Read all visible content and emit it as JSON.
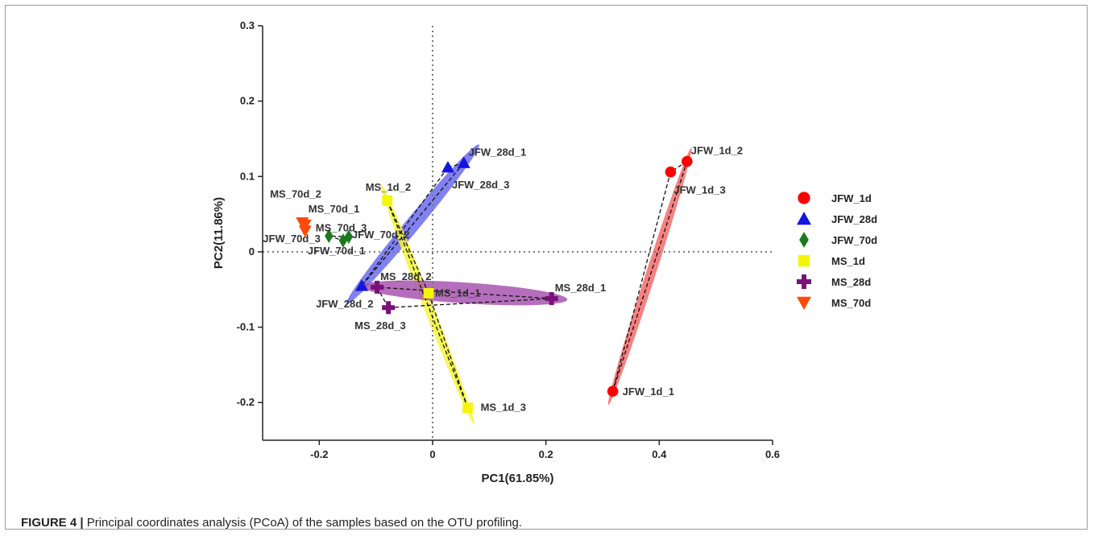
{
  "figure_caption": {
    "label": "FIGURE 4 |",
    "text": " Principal coordinates analysis (PCoA) of the samples based on the OTU profiling."
  },
  "chart_data": {
    "type": "scatter",
    "xlabel": "PC1(61.85%)",
    "ylabel": "PC2(11.86%)",
    "xlim": [
      -0.3,
      0.6
    ],
    "ylim": [
      -0.25,
      0.3
    ],
    "xticks": [
      "-0.2",
      "0",
      "0.2",
      "0.4",
      "0.6"
    ],
    "xtick_values": [
      -0.2,
      0,
      0.2,
      0.4,
      0.6
    ],
    "yticks": [
      "-0.2",
      "-0.1",
      "0",
      "0.1",
      "0.2",
      "0.3"
    ],
    "ytick_values": [
      -0.2,
      -0.1,
      0,
      0.1,
      0.2,
      0.3
    ],
    "grid": false,
    "reference_lines": {
      "x0": true,
      "y0": true,
      "style": "dotted"
    },
    "legend_position": "right",
    "series": [
      {
        "name": "JFW_1d",
        "marker": "circle",
        "color": "#ff0000",
        "ellipse_color": "#f56b6b",
        "points": [
          {
            "label": "JFW_1d_1",
            "x": 0.318,
            "y": -0.185
          },
          {
            "label": "JFW_1d_2",
            "x": 0.449,
            "y": 0.12
          },
          {
            "label": "JFW_1d_3",
            "x": 0.42,
            "y": 0.106
          }
        ]
      },
      {
        "name": "JFW_28d",
        "marker": "triangle-up",
        "color": "#1515e0",
        "ellipse_color": "#6b6bf0",
        "points": [
          {
            "label": "JFW_28d_1",
            "x": 0.055,
            "y": 0.118
          },
          {
            "label": "JFW_28d_2",
            "x": -0.125,
            "y": -0.045
          },
          {
            "label": "JFW_28d_3",
            "x": 0.027,
            "y": 0.112
          }
        ]
      },
      {
        "name": "JFW_70d",
        "marker": "diamond",
        "color": "#1a7a1a",
        "ellipse_color": null,
        "points": [
          {
            "label": "JFW_70d_1",
            "x": -0.158,
            "y": 0.015
          },
          {
            "label": "JFW_70d_2",
            "x": -0.148,
            "y": 0.02
          },
          {
            "label": "JFW_70d_3",
            "x": -0.183,
            "y": 0.021
          }
        ]
      },
      {
        "name": "MS_1d",
        "marker": "square",
        "color": "#f5f50a",
        "ellipse_color": "#f5f53a",
        "points": [
          {
            "label": "MS_1d_1",
            "x": -0.007,
            "y": -0.055
          },
          {
            "label": "MS_1d_2",
            "x": -0.08,
            "y": 0.068
          },
          {
            "label": "MS_1d_3",
            "x": 0.062,
            "y": -0.207
          }
        ]
      },
      {
        "name": "MS_28d",
        "marker": "plus",
        "color": "#7a107a",
        "ellipse_color": "#a855b0",
        "points": [
          {
            "label": "MS_28d_1",
            "x": 0.21,
            "y": -0.062
          },
          {
            "label": "MS_28d_2",
            "x": -0.098,
            "y": -0.047
          },
          {
            "label": "MS_28d_3",
            "x": -0.078,
            "y": -0.074
          }
        ]
      },
      {
        "name": "MS_70d",
        "marker": "triangle-down",
        "color": "#ff4a0a",
        "ellipse_color": null,
        "points": [
          {
            "label": "MS_70d_1",
            "x": -0.225,
            "y": 0.036
          },
          {
            "label": "MS_70d_2",
            "x": -0.23,
            "y": 0.039
          },
          {
            "label": "MS_70d_3",
            "x": -0.225,
            "y": 0.028
          }
        ]
      }
    ]
  }
}
